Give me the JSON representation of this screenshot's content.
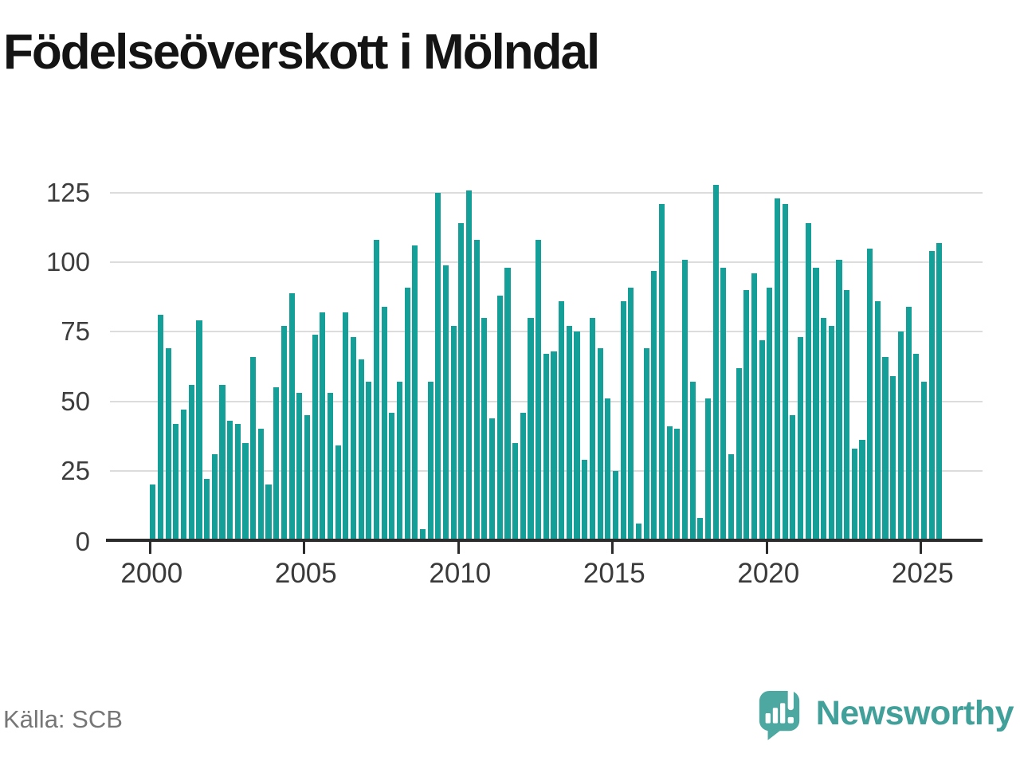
{
  "title": "Födelseöverskott i Mölndal",
  "source": "Källa: SCB",
  "logo": {
    "text": "Newsworthy"
  },
  "colors": {
    "bar": "#14A098",
    "grid": "#dcdcdc",
    "axis": "#2b2b2b",
    "logo_bubble": "#4CA8A0",
    "logo_text": "#41a099",
    "title_text": "#141414",
    "tick_label": "#3a3a3a",
    "source_text": "#767676"
  },
  "chart_data": {
    "type": "bar",
    "title": "Födelseöverskott i Mölndal",
    "xlabel": "",
    "ylabel": "",
    "frequency": "quarterly",
    "legend": "none",
    "grid": "horizontal",
    "ylim": [
      0,
      130
    ],
    "y_ticks": [
      0,
      25,
      50,
      75,
      100,
      125
    ],
    "x_ticks": [
      2000,
      2005,
      2010,
      2015,
      2020,
      2025
    ],
    "years": [
      {
        "year": 2000,
        "values": [
          20,
          81,
          69,
          42
        ]
      },
      {
        "year": 2001,
        "values": [
          47,
          56,
          79,
          22
        ]
      },
      {
        "year": 2002,
        "values": [
          31,
          56,
          43,
          42
        ]
      },
      {
        "year": 2003,
        "values": [
          35,
          66,
          40,
          20
        ]
      },
      {
        "year": 2004,
        "values": [
          55,
          77,
          89,
          53
        ]
      },
      {
        "year": 2005,
        "values": [
          45,
          74,
          82,
          53
        ]
      },
      {
        "year": 2006,
        "values": [
          34,
          82,
          73,
          65
        ]
      },
      {
        "year": 2007,
        "values": [
          57,
          108,
          84,
          46
        ]
      },
      {
        "year": 2008,
        "values": [
          57,
          91,
          106,
          4
        ]
      },
      {
        "year": 2009,
        "values": [
          57,
          125,
          99,
          77
        ]
      },
      {
        "year": 2010,
        "values": [
          114,
          126,
          108,
          80
        ]
      },
      {
        "year": 2011,
        "values": [
          44,
          88,
          98,
          35
        ]
      },
      {
        "year": 2012,
        "values": [
          46,
          80,
          108,
          67
        ]
      },
      {
        "year": 2013,
        "values": [
          68,
          86,
          77,
          75
        ]
      },
      {
        "year": 2014,
        "values": [
          29,
          80,
          69,
          51
        ]
      },
      {
        "year": 2015,
        "values": [
          25,
          86,
          91,
          6
        ]
      },
      {
        "year": 2016,
        "values": [
          69,
          97,
          121,
          41
        ]
      },
      {
        "year": 2017,
        "values": [
          40,
          101,
          57,
          8
        ]
      },
      {
        "year": 2018,
        "values": [
          51,
          128,
          98,
          31
        ]
      },
      {
        "year": 2019,
        "values": [
          62,
          90,
          96,
          72
        ]
      },
      {
        "year": 2020,
        "values": [
          91,
          123,
          121,
          45
        ]
      },
      {
        "year": 2021,
        "values": [
          73,
          114,
          98,
          80
        ]
      },
      {
        "year": 2022,
        "values": [
          77,
          101,
          90,
          33
        ]
      },
      {
        "year": 2023,
        "values": [
          36,
          105,
          86,
          66
        ]
      },
      {
        "year": 2024,
        "values": [
          59,
          75,
          84,
          67
        ]
      },
      {
        "year": 2025,
        "values": [
          57,
          104,
          107
        ]
      }
    ]
  }
}
